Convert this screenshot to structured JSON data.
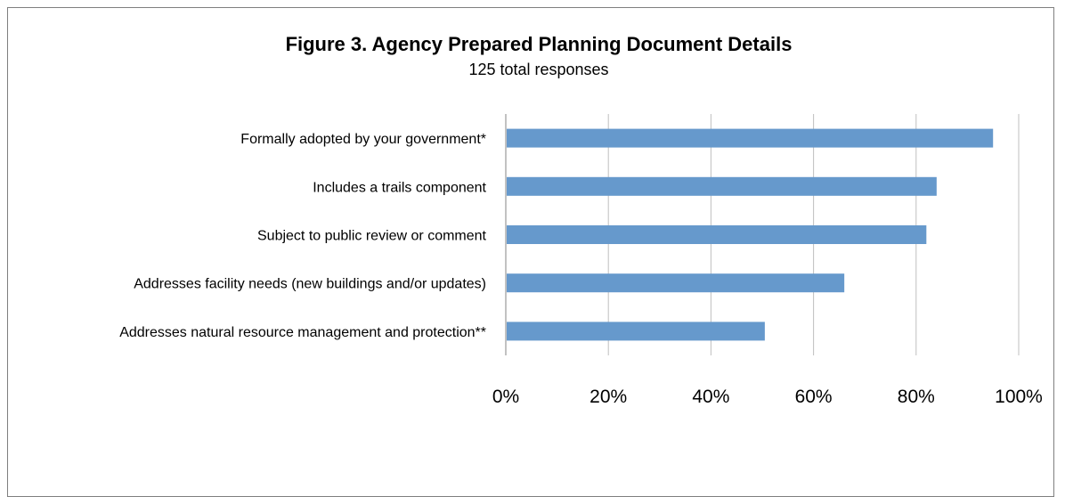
{
  "chart_data": {
    "type": "bar",
    "orientation": "horizontal",
    "title": "Figure 3.  Agency Prepared Planning Document Details",
    "subtitle": "125 total responses",
    "categories": [
      "Formally adopted by your government*",
      "Includes a trails component",
      "Subject to public review or comment",
      "Addresses facility needs (new buildings and/or updates)",
      "Addresses natural resource management and protection**"
    ],
    "values": [
      95,
      84,
      82,
      66,
      50.5
    ],
    "value_unit": "%",
    "xlim": [
      0,
      100
    ],
    "x_ticks": [
      "0%",
      "20%",
      "40%",
      "60%",
      "80%",
      "100%"
    ],
    "grid": true,
    "bar_color": "#6699cc"
  }
}
